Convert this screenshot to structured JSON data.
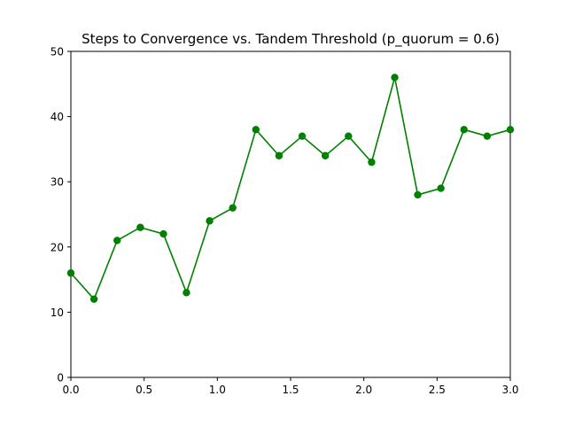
{
  "chart_data": {
    "type": "line",
    "title": "Steps to Convergence vs. Tandem Threshold (p_quorum = 0.6)",
    "xlabel": "",
    "ylabel": "",
    "xlim": [
      0,
      3.0
    ],
    "ylim": [
      0,
      50
    ],
    "xticks": [
      "0.0",
      "0.5",
      "1.0",
      "1.5",
      "2.0",
      "2.5",
      "3.0"
    ],
    "yticks": [
      "0",
      "10",
      "20",
      "30",
      "40",
      "50"
    ],
    "grid": false,
    "legend": "none",
    "series": [
      {
        "color": "#008000",
        "marker": "circle",
        "x": [
          0.0,
          0.158,
          0.316,
          0.474,
          0.632,
          0.789,
          0.947,
          1.105,
          1.263,
          1.421,
          1.579,
          1.737,
          1.895,
          2.053,
          2.211,
          2.368,
          2.526,
          2.684,
          2.842,
          3.0
        ],
        "y": [
          16,
          12,
          21,
          23,
          22,
          13,
          24,
          26,
          38,
          34,
          37,
          34,
          37,
          33,
          46,
          28,
          29,
          38,
          37,
          38
        ]
      }
    ]
  }
}
